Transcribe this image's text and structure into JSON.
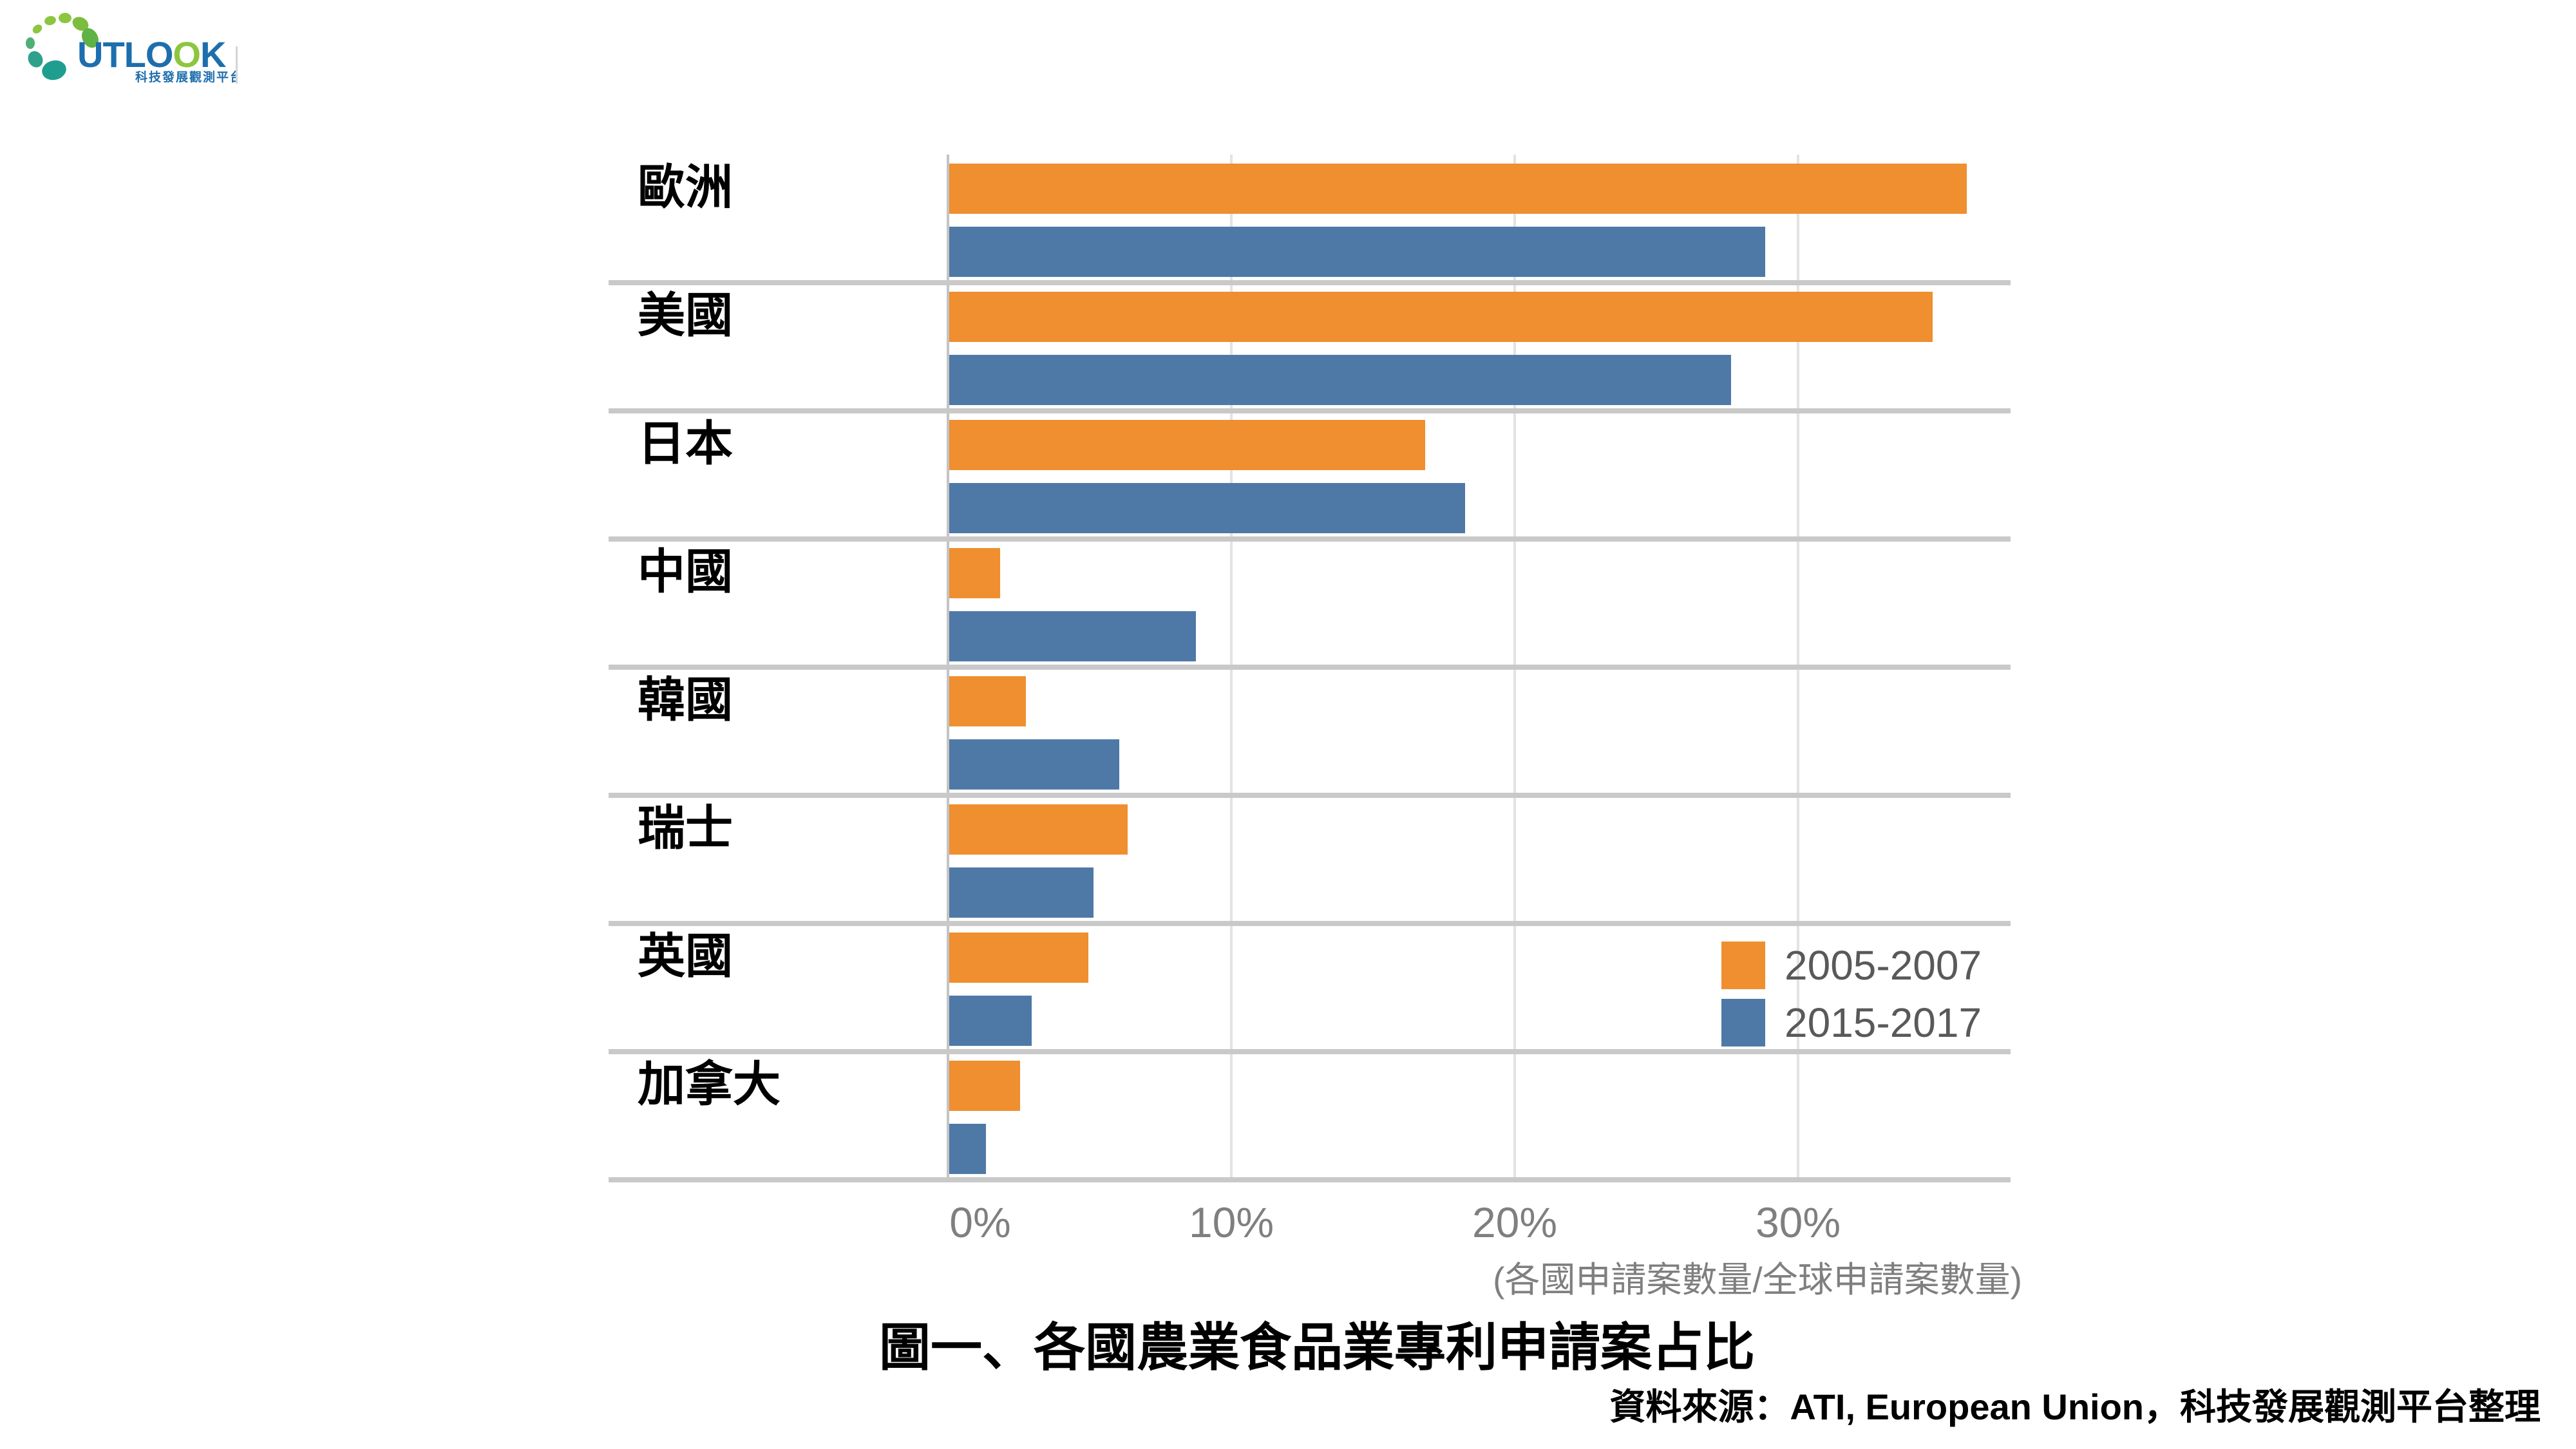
{
  "logo": {
    "wordmark_part1": "UTLO",
    "wordmark_part2": "O",
    "wordmark_part3": "K",
    "subtitle": "科技發展觀測平台",
    "brand_blue": "#1D6EAD",
    "brand_green": "#8CC63E"
  },
  "title": "圖一、各國農業食品業專利申請案占比",
  "source_note": "資料來源：ATI, European Union，科技發展觀測平台整理",
  "chart_data": {
    "type": "bar",
    "orientation": "horizontal",
    "title": "圖一、各國農業食品業專利申請案占比",
    "categories": [
      "歐洲",
      "美國",
      "日本",
      "中國",
      "韓國",
      "瑞士",
      "英國",
      "加拿大"
    ],
    "series": [
      {
        "name": "2005-2007",
        "color": "#EF8F2F",
        "values": [
          35.9,
          34.7,
          16.8,
          1.8,
          2.7,
          6.3,
          4.9,
          2.5
        ]
      },
      {
        "name": "2015-2017",
        "color": "#4E79A7",
        "values": [
          28.8,
          27.6,
          18.2,
          8.7,
          6.0,
          5.1,
          2.9,
          1.3
        ]
      }
    ],
    "x_ticks": [
      {
        "label": "0%",
        "value": 0
      },
      {
        "label": "10%",
        "value": 10
      },
      {
        "label": "20%",
        "value": 20
      },
      {
        "label": "30%",
        "value": 30
      }
    ],
    "xlim": [
      0,
      37.5
    ],
    "x_axis_note": "(各國申請案數量/全球申請案數量)",
    "unit": "percent of worldwide applications",
    "grid": "vertical-light",
    "legend_position": "right-lower"
  },
  "colors": {
    "separator": "#C9C9C9",
    "gridline": "#E3E3E3",
    "axis_line": "#C4C4C4",
    "tick_text": "#7F7F7F",
    "legend_text": "#595959"
  }
}
